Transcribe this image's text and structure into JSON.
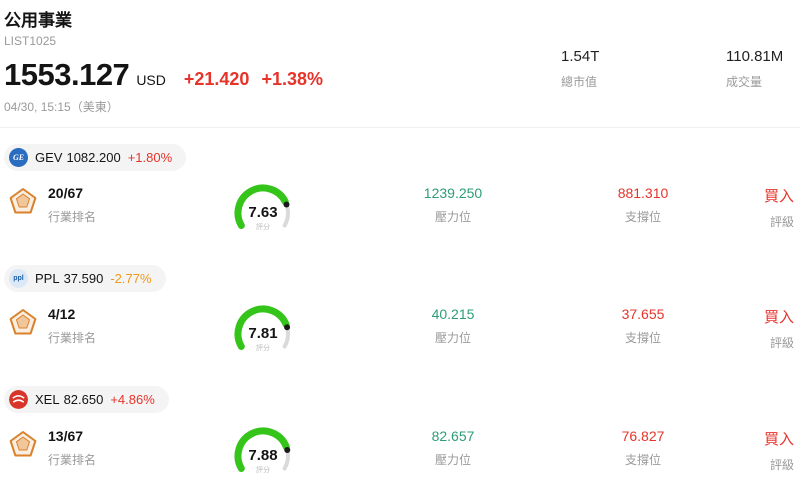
{
  "header": {
    "title": "公用事業",
    "list_id": "LIST1025",
    "price": "1553.127",
    "currency": "USD",
    "change": "+21.420",
    "change_pct": "+1.38%",
    "timestamp": "04/30, 15:15（美東）",
    "market_cap": {
      "value": "1.54T",
      "label": "總市值"
    },
    "volume": {
      "value": "110.81M",
      "label": "成交量"
    }
  },
  "labels": {
    "industry_rank": "行業排名",
    "score": "評分",
    "pressure": "壓力位",
    "support": "支撐位",
    "rating": "評級"
  },
  "stocks": [
    {
      "ticker": "GEV",
      "price": "1082.200",
      "change_pct": "+1.80%",
      "change_dir": "up",
      "rank": "20/67",
      "score": "7.63",
      "score_value": 7.63,
      "pressure": "1239.250",
      "support": "881.310",
      "rating": "買入"
    },
    {
      "ticker": "PPL",
      "price": "37.590",
      "change_pct": "-2.77%",
      "change_dir": "down",
      "rank": "4/12",
      "score": "7.81",
      "score_value": 7.81,
      "pressure": "40.215",
      "support": "37.655",
      "rating": "買入"
    },
    {
      "ticker": "XEL",
      "price": "82.650",
      "change_pct": "+4.86%",
      "change_dir": "up",
      "rank": "13/67",
      "score": "7.88",
      "score_value": 7.88,
      "pressure": "82.657",
      "support": "76.827",
      "rating": "買入"
    }
  ],
  "logos": {
    "gev": "GE",
    "ppl": "ppl"
  },
  "colors": {
    "up_red": "#e6342b",
    "down_orange": "#f09a1a",
    "pressure_teal": "#2e9c78",
    "support_red": "#e6342b",
    "gauge_green": "#35c41a",
    "gauge_track": "#dadada",
    "gauge_dot": "#1a1a1a"
  }
}
